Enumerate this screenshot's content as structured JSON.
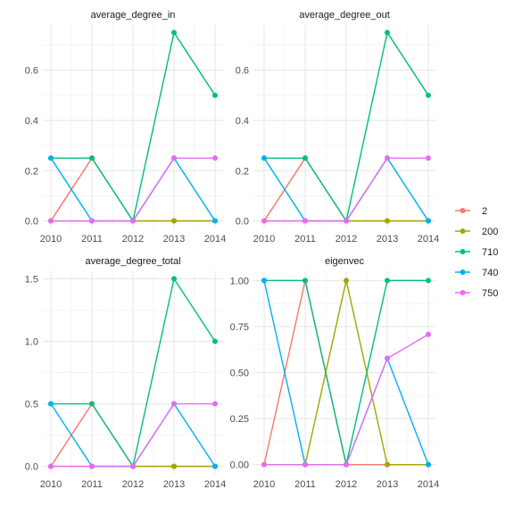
{
  "chart_data": {
    "type": "line",
    "facet": "wrap",
    "grid": true,
    "legend_position": "right",
    "x": [
      2010,
      2011,
      2012,
      2013,
      2014
    ],
    "series_colors": {
      "2": "#F8766D",
      "200": "#A3A500",
      "710": "#00BF7D",
      "740": "#00B0F6",
      "750": "#E76BF3"
    },
    "legend": [
      "2",
      "200",
      "710",
      "740",
      "750"
    ],
    "panels": [
      {
        "title": "average_degree_in",
        "ylim": [
          -0.03,
          0.78
        ],
        "yticks": [
          0.0,
          0.2,
          0.4,
          0.6
        ],
        "ytick_labels": [
          "0.0",
          "0.2",
          "0.4",
          "0.6"
        ],
        "series": [
          {
            "name": "2",
            "values": [
              0,
              0.25,
              0,
              0,
              0
            ]
          },
          {
            "name": "200",
            "values": [
              0,
              0,
              0,
              0,
              0
            ]
          },
          {
            "name": "710",
            "values": [
              0.25,
              0.25,
              0,
              0.75,
              0.5
            ]
          },
          {
            "name": "740",
            "values": [
              0.25,
              0,
              0,
              0.25,
              0
            ]
          },
          {
            "name": "750",
            "values": [
              0,
              0,
              0,
              0.25,
              0.25
            ]
          }
        ]
      },
      {
        "title": "average_degree_out",
        "ylim": [
          -0.03,
          0.78
        ],
        "yticks": [
          0.0,
          0.2,
          0.4,
          0.6
        ],
        "ytick_labels": [
          "0.0",
          "0.2",
          "0.4",
          "0.6"
        ],
        "series": [
          {
            "name": "2",
            "values": [
              0,
              0.25,
              0,
              0,
              0
            ]
          },
          {
            "name": "200",
            "values": [
              0,
              0,
              0,
              0,
              0
            ]
          },
          {
            "name": "710",
            "values": [
              0.25,
              0.25,
              0,
              0.75,
              0.5
            ]
          },
          {
            "name": "740",
            "values": [
              0.25,
              0,
              0,
              0.25,
              0
            ]
          },
          {
            "name": "750",
            "values": [
              0,
              0,
              0,
              0.25,
              0.25
            ]
          }
        ]
      },
      {
        "title": "average_degree_total",
        "ylim": [
          -0.06,
          1.56
        ],
        "yticks": [
          0.0,
          0.5,
          1.0,
          1.5
        ],
        "ytick_labels": [
          "0.0",
          "0.5",
          "1.0",
          "1.5"
        ],
        "series": [
          {
            "name": "2",
            "values": [
              0,
              0.5,
              0,
              0,
              0
            ]
          },
          {
            "name": "200",
            "values": [
              0,
              0,
              0,
              0,
              0
            ]
          },
          {
            "name": "710",
            "values": [
              0.5,
              0.5,
              0,
              1.5,
              1.0
            ]
          },
          {
            "name": "740",
            "values": [
              0.5,
              0,
              0,
              0.5,
              0
            ]
          },
          {
            "name": "750",
            "values": [
              0,
              0,
              0,
              0.5,
              0.5
            ]
          }
        ]
      },
      {
        "title": "eigenvec",
        "ylim": [
          -0.05,
          1.05
        ],
        "yticks": [
          0.0,
          0.25,
          0.5,
          0.75,
          1.0
        ],
        "ytick_labels": [
          "0.00",
          "0.25",
          "0.50",
          "0.75",
          "1.00"
        ],
        "series": [
          {
            "name": "2",
            "values": [
              0,
              1.0,
              0,
              0,
              0
            ]
          },
          {
            "name": "200",
            "values": [
              0,
              0,
              1.0,
              0,
              0
            ]
          },
          {
            "name": "710",
            "values": [
              1.0,
              1.0,
              0,
              1.0,
              1.0
            ]
          },
          {
            "name": "740",
            "values": [
              1.0,
              0,
              0,
              0.577,
              0
            ]
          },
          {
            "name": "750",
            "values": [
              0,
              0,
              0,
              0.577,
              0.707
            ]
          }
        ]
      }
    ]
  }
}
